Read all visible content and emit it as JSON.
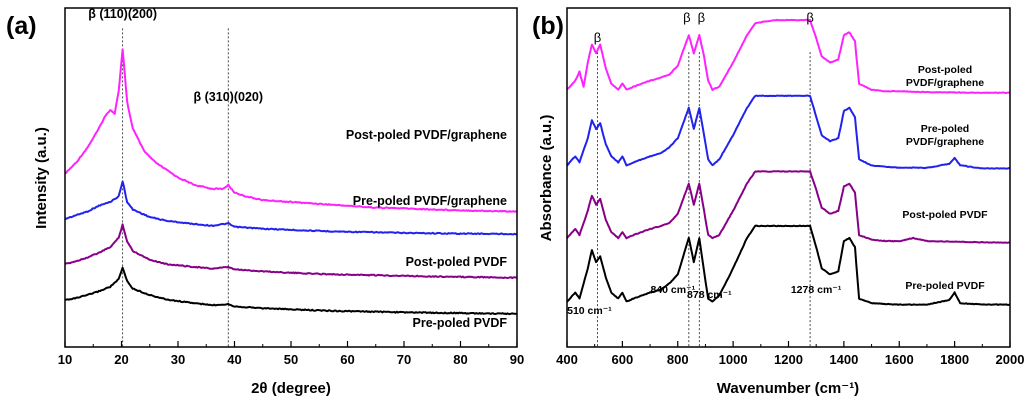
{
  "chart_data": [
    {
      "panel_label": "(a)",
      "type": "line",
      "xlabel": "2θ (degree)",
      "ylabel": "Intensity (a.u.)",
      "xlim": [
        10,
        90
      ],
      "xticks": [
        10,
        20,
        30,
        40,
        50,
        60,
        70,
        80,
        90
      ],
      "y_ticks_shown": false,
      "grid": false,
      "reference_lines": [
        20.2,
        38.9
      ],
      "annotations": [
        {
          "text": "β (110)(200)",
          "x": 20.2
        },
        {
          "text": "β (310)(020)",
          "x": 38.9
        }
      ],
      "series": [
        {
          "name": "Post-poled PVDF/graphene",
          "color": "#ff22ff",
          "x": [
            10,
            12,
            14,
            16,
            17,
            18,
            18.8,
            19.5,
            20.2,
            21,
            22,
            24,
            26,
            28,
            30,
            33,
            36,
            38,
            38.9,
            40,
            42,
            45,
            50,
            55,
            60,
            65,
            70,
            75,
            80,
            85,
            90
          ],
          "y": [
            46,
            49,
            53,
            58,
            61,
            63,
            62,
            68,
            79,
            65,
            58,
            52,
            49,
            47,
            45,
            43,
            42,
            42,
            43,
            41,
            40,
            39,
            38.5,
            38,
            37.5,
            37,
            36.8,
            36.5,
            36.3,
            36.1,
            36
          ]
        },
        {
          "name": "Pre-poled PVDF/graphene",
          "color": "#2222ee",
          "x": [
            10,
            12,
            14,
            16,
            18,
            19.5,
            20.2,
            21,
            22,
            25,
            28,
            32,
            36,
            38.9,
            40,
            45,
            50,
            55,
            60,
            70,
            80,
            90
          ],
          "y": [
            34,
            35,
            36,
            37.5,
            38.5,
            40,
            44,
            38.5,
            36.5,
            34.5,
            33.5,
            32.8,
            32.2,
            32.8,
            31.9,
            31.4,
            31.1,
            30.8,
            30.6,
            30.3,
            30.1,
            30
          ]
        },
        {
          "name": "Post-poled PVDF",
          "color": "#880088",
          "x": [
            10,
            12,
            14,
            16,
            18,
            19.5,
            20.2,
            21,
            22,
            25,
            28,
            32,
            36,
            38.9,
            40,
            45,
            50,
            55,
            60,
            70,
            80,
            90
          ],
          "y": [
            22,
            22.8,
            23.8,
            25,
            26.5,
            29,
            32.5,
            28,
            25.5,
            23.2,
            22,
            21.4,
            20.8,
            21.2,
            20.6,
            20.1,
            19.7,
            19.4,
            19.2,
            18.9,
            18.6,
            18.4
          ]
        },
        {
          "name": "Pre-poled PVDF",
          "color": "#000000",
          "x": [
            10,
            12,
            14,
            16,
            18,
            19.5,
            20.2,
            21,
            22,
            25,
            28,
            32,
            36,
            38.9,
            40,
            45,
            50,
            55,
            60,
            70,
            80,
            90
          ],
          "y": [
            12.5,
            13,
            13.8,
            14.8,
            16,
            18,
            21,
            17.5,
            15.5,
            13.8,
            12.6,
            11.8,
            11.1,
            11.4,
            10.8,
            10.3,
            10,
            9.7,
            9.5,
            9.2,
            9,
            8.8
          ]
        }
      ]
    },
    {
      "panel_label": "(b)",
      "type": "line",
      "xlabel": "Wavenumber (cm⁻¹)",
      "ylabel": "Absorbance (a.u.)",
      "xlim": [
        400,
        2000
      ],
      "xticks": [
        400,
        600,
        800,
        1000,
        1200,
        1400,
        1600,
        1800,
        2000
      ],
      "y_ticks_shown": false,
      "grid": false,
      "reference_lines": [
        510,
        840,
        878,
        1278
      ],
      "annotations": [
        {
          "text": "β",
          "x": 510
        },
        {
          "text": "β",
          "x": 840
        },
        {
          "text": "β",
          "x": 878
        },
        {
          "text": "β",
          "x": 1278
        },
        {
          "text": "510 cm⁻¹",
          "x": 510
        },
        {
          "text": "840 cm⁻¹",
          "x": 840
        },
        {
          "text": "878 cm⁻¹",
          "x": 878
        },
        {
          "text": "1278 cm⁻¹",
          "x": 1278
        }
      ],
      "series": [
        {
          "name": "Post-poled PVDF/graphene",
          "color": "#ff22ff",
          "x": [
            400,
            430,
            445,
            460,
            475,
            490,
            505,
            520,
            540,
            560,
            585,
            600,
            615,
            640,
            700,
            740,
            770,
            800,
            820,
            840,
            858,
            878,
            895,
            910,
            925,
            950,
            1000,
            1050,
            1080,
            1150,
            1250,
            1278,
            1300,
            1320,
            1350,
            1380,
            1400,
            1420,
            1440,
            1455,
            1500,
            1550,
            1600,
            1650,
            1700,
            1800,
            1900,
            2000
          ],
          "y": [
            73,
            76,
            79,
            74,
            82,
            88,
            85,
            88,
            80,
            75,
            73,
            75,
            73,
            74,
            76,
            77,
            78,
            81,
            86,
            91,
            85,
            91,
            84,
            76,
            73,
            74,
            82,
            91,
            95,
            96,
            96,
            96,
            90,
            84,
            82,
            83,
            91,
            92,
            89,
            75,
            73,
            72.5,
            72.5,
            72.3,
            72.2,
            72.1,
            72,
            72
          ]
        },
        {
          "name": "Pre-poled PVDF/graphene",
          "color": "#2222ee",
          "x": [
            400,
            430,
            445,
            460,
            475,
            490,
            505,
            520,
            540,
            560,
            585,
            600,
            615,
            640,
            700,
            740,
            770,
            800,
            820,
            840,
            858,
            878,
            895,
            910,
            925,
            950,
            1000,
            1050,
            1080,
            1150,
            1250,
            1278,
            1300,
            1320,
            1350,
            1380,
            1400,
            1420,
            1440,
            1455,
            1500,
            1550,
            1600,
            1700,
            1780,
            1800,
            1820,
            1900,
            2000
          ],
          "y": [
            48,
            51,
            49,
            53,
            57,
            63,
            60,
            62,
            55,
            51,
            49,
            51,
            48,
            49,
            51,
            52,
            54,
            57,
            62,
            67,
            60,
            67,
            58,
            50,
            48,
            50,
            58,
            67,
            71,
            71,
            71,
            71,
            64,
            58,
            56,
            57,
            66,
            67,
            64,
            50,
            48,
            47.5,
            47.3,
            47.2,
            48.5,
            50.5,
            48,
            47,
            47
          ]
        },
        {
          "name": "Post-poled PVDF",
          "color": "#880088",
          "x": [
            400,
            430,
            445,
            460,
            475,
            490,
            505,
            520,
            540,
            560,
            585,
            600,
            615,
            640,
            700,
            740,
            770,
            800,
            820,
            840,
            858,
            878,
            895,
            910,
            925,
            950,
            1000,
            1050,
            1080,
            1150,
            1250,
            1278,
            1300,
            1320,
            1350,
            1380,
            1400,
            1420,
            1440,
            1455,
            1500,
            1550,
            1600,
            1650,
            1700,
            1800,
            1900,
            2000
          ],
          "y": [
            24,
            27,
            25,
            29,
            33,
            38,
            35,
            37,
            30,
            26,
            24,
            26,
            24,
            25,
            27,
            28,
            29,
            32,
            37,
            42,
            35,
            42,
            33,
            25,
            24,
            25,
            33,
            42,
            46,
            46,
            46,
            46,
            40,
            34,
            32,
            33,
            41,
            42,
            39,
            25,
            23.5,
            23,
            23,
            24,
            23,
            22.8,
            22.6,
            22.5
          ]
        },
        {
          "name": "Pre-poled PVDF",
          "color": "#000000",
          "x": [
            400,
            430,
            445,
            460,
            475,
            490,
            505,
            520,
            540,
            560,
            585,
            600,
            615,
            640,
            700,
            740,
            770,
            800,
            820,
            840,
            858,
            878,
            895,
            910,
            925,
            950,
            1000,
            1050,
            1080,
            1150,
            1250,
            1278,
            1300,
            1320,
            1350,
            1380,
            1400,
            1420,
            1440,
            1455,
            1500,
            1550,
            1600,
            1700,
            1780,
            1800,
            1820,
            1900,
            2000
          ],
          "y": [
            3,
            6,
            4,
            9,
            14,
            20,
            16,
            18,
            11,
            6,
            4,
            6,
            3,
            4,
            6,
            7,
            9,
            12,
            18,
            24,
            16,
            24,
            13,
            4,
            3,
            5,
            14,
            24,
            28,
            28,
            28,
            28,
            21,
            14,
            12,
            13,
            23,
            24,
            21,
            4,
            2.5,
            2.2,
            2,
            2,
            3.5,
            6,
            2.5,
            2,
            2
          ]
        }
      ]
    }
  ]
}
